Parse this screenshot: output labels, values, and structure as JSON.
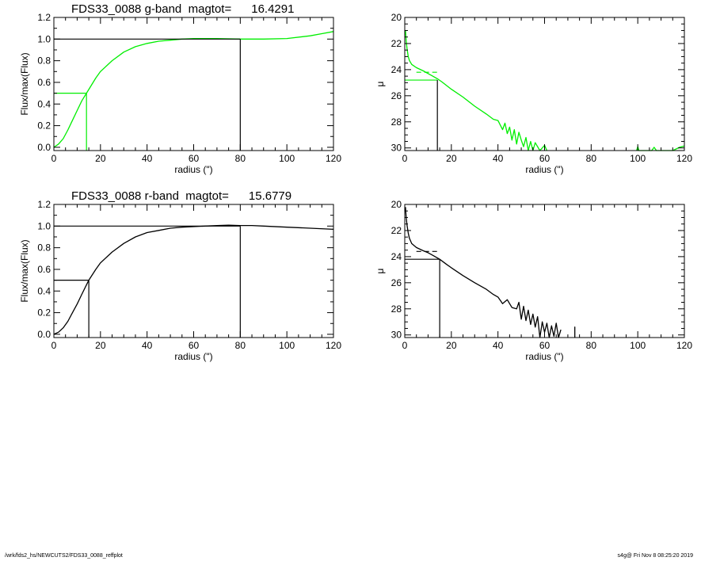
{
  "colors": {
    "g_band": "#00ee00",
    "r_band": "#000000",
    "axis": "#000000"
  },
  "footer": {
    "path": "/wrk/fds2_hs/NEWCUTS2/FDS33_0088_reffplot",
    "stamp": "s4g@  Fri Nov  8 08:25:20 2019"
  },
  "chart_data": [
    {
      "type": "line",
      "title": "FDS33_0088 g-band  magtot=      16.4291",
      "xlabel": "radius (\")",
      "ylabel": "Flux/max(Flux)",
      "xlim": [
        0,
        120
      ],
      "ylim": [
        -0.03,
        1.2
      ],
      "xticks": [
        0,
        20,
        40,
        60,
        80,
        100,
        120
      ],
      "yticks": [
        0.0,
        0.2,
        0.4,
        0.6,
        0.8,
        1.0,
        1.2
      ],
      "ytick_labels": [
        "0.0",
        "0.2",
        "0.4",
        "0.6",
        "0.8",
        "1.0",
        "1.2"
      ],
      "color": "#00ee00",
      "series": [
        {
          "x": [
            0,
            2,
            4,
            6,
            8,
            10,
            12,
            14,
            16,
            18,
            20,
            25,
            30,
            35,
            40,
            45,
            50,
            55,
            60,
            70,
            80,
            90,
            100,
            110,
            115,
            120
          ],
          "y": [
            0.0,
            0.03,
            0.08,
            0.16,
            0.25,
            0.34,
            0.43,
            0.5,
            0.57,
            0.64,
            0.7,
            0.8,
            0.88,
            0.93,
            0.96,
            0.98,
            0.99,
            1.0,
            1.005,
            1.005,
            1.0,
            1.0,
            1.005,
            1.03,
            1.05,
            1.07
          ]
        }
      ],
      "markers": {
        "half_light_radius": 14,
        "half_level": 0.5,
        "total_radius": 80,
        "total_level": 1.0
      }
    },
    {
      "type": "line",
      "title": "",
      "xlabel": "radius (\")",
      "ylabel": "μ",
      "xlim": [
        0,
        120
      ],
      "ylim": [
        30.2,
        20
      ],
      "xticks": [
        0,
        20,
        40,
        60,
        80,
        100,
        120
      ],
      "yticks": [
        20,
        22,
        24,
        26,
        28,
        30
      ],
      "ytick_labels": [
        "20",
        "22",
        "24",
        "26",
        "28",
        "30"
      ],
      "color": "#00ee00",
      "series": [
        {
          "x": [
            0.3,
            0.6,
            1,
            1.5,
            2,
            3,
            5,
            8,
            10,
            12,
            14,
            16,
            20,
            25,
            30,
            35,
            38,
            40,
            42,
            43,
            44,
            45,
            46,
            47,
            48,
            49,
            50,
            51,
            52,
            53,
            54,
            55,
            56,
            58,
            60,
            61
          ],
          "y": [
            21.0,
            21.8,
            22.4,
            23.0,
            23.3,
            23.6,
            23.85,
            24.1,
            24.3,
            24.5,
            24.7,
            24.95,
            25.5,
            26.1,
            26.8,
            27.4,
            27.8,
            27.9,
            28.6,
            28.1,
            28.9,
            28.4,
            29.4,
            28.6,
            29.7,
            28.8,
            29.4,
            29.9,
            29.2,
            30.2,
            29.5,
            30.2,
            29.6,
            30.3,
            29.8,
            30.3
          ]
        },
        {
          "x": [
            99.5,
            100,
            100.5,
            106,
            107,
            108,
            109,
            115,
            118,
            120
          ],
          "y": [
            30.3,
            29.9,
            30.3,
            30.3,
            29.95,
            30.3,
            30.3,
            30.2,
            29.95,
            29.85
          ]
        }
      ],
      "markers": {
        "half_light_radius": 14,
        "half_light_mu": 24.8,
        "dashed_level": 24.2,
        "dashed_x": [
          5,
          15
        ]
      }
    },
    {
      "type": "line",
      "title": "FDS33_0088 r-band  magtot=      15.6779",
      "xlabel": "radius (\")",
      "ylabel": "Flux/max(Flux)",
      "xlim": [
        0,
        120
      ],
      "ylim": [
        -0.03,
        1.2
      ],
      "xticks": [
        0,
        20,
        40,
        60,
        80,
        100,
        120
      ],
      "yticks": [
        0.0,
        0.2,
        0.4,
        0.6,
        0.8,
        1.0,
        1.2
      ],
      "ytick_labels": [
        "0.0",
        "0.2",
        "0.4",
        "0.6",
        "0.8",
        "1.0",
        "1.2"
      ],
      "color": "#000000",
      "series": [
        {
          "x": [
            0,
            2,
            4,
            6,
            8,
            10,
            12,
            15,
            18,
            20,
            25,
            30,
            35,
            40,
            45,
            50,
            55,
            60,
            65,
            70,
            75,
            80,
            85,
            90,
            100,
            110,
            120
          ],
          "y": [
            0.0,
            0.02,
            0.06,
            0.12,
            0.2,
            0.28,
            0.37,
            0.5,
            0.6,
            0.66,
            0.76,
            0.84,
            0.9,
            0.94,
            0.96,
            0.98,
            0.99,
            0.995,
            1.0,
            1.005,
            1.008,
            1.005,
            1.005,
            1.0,
            0.99,
            0.98,
            0.97
          ]
        }
      ],
      "markers": {
        "half_light_radius": 15,
        "half_level": 0.5,
        "total_radius": 80,
        "total_level": 1.0
      }
    },
    {
      "type": "line",
      "title": "",
      "xlabel": "radius (\")",
      "ylabel": "μ",
      "xlim": [
        0,
        120
      ],
      "ylim": [
        30.2,
        20
      ],
      "xticks": [
        0,
        20,
        40,
        60,
        80,
        100,
        120
      ],
      "yticks": [
        20,
        22,
        24,
        26,
        28,
        30
      ],
      "ytick_labels": [
        "20",
        "22",
        "24",
        "26",
        "28",
        "30"
      ],
      "color": "#000000",
      "series": [
        {
          "x": [
            0.3,
            0.6,
            1,
            1.5,
            2,
            3,
            5,
            8,
            10,
            12,
            15,
            18,
            20,
            25,
            30,
            35,
            38,
            40,
            42,
            44,
            46,
            48,
            49,
            50,
            51,
            52,
            53,
            54,
            55,
            56,
            57,
            58,
            59,
            60,
            61,
            62,
            63,
            64,
            65,
            66,
            67
          ],
          "y": [
            20.2,
            21.0,
            21.6,
            22.2,
            22.6,
            23.0,
            23.3,
            23.55,
            23.7,
            23.9,
            24.2,
            24.6,
            24.85,
            25.45,
            26.0,
            26.5,
            26.9,
            27.1,
            27.6,
            27.3,
            27.9,
            28.0,
            27.5,
            28.8,
            27.8,
            28.9,
            28.1,
            29.2,
            28.4,
            29.4,
            28.6,
            30.2,
            29.0,
            29.8,
            29.1,
            30.2,
            29.3,
            30.1,
            29.1,
            30.2,
            29.6
          ]
        },
        {
          "x": [
            73,
            73,
            73
          ],
          "y": [
            30.3,
            29.4,
            30.3
          ]
        }
      ],
      "markers": {
        "half_light_radius": 15,
        "half_light_mu": 24.2,
        "dashed_level": 23.6,
        "dashed_x": [
          5,
          15
        ]
      }
    }
  ]
}
